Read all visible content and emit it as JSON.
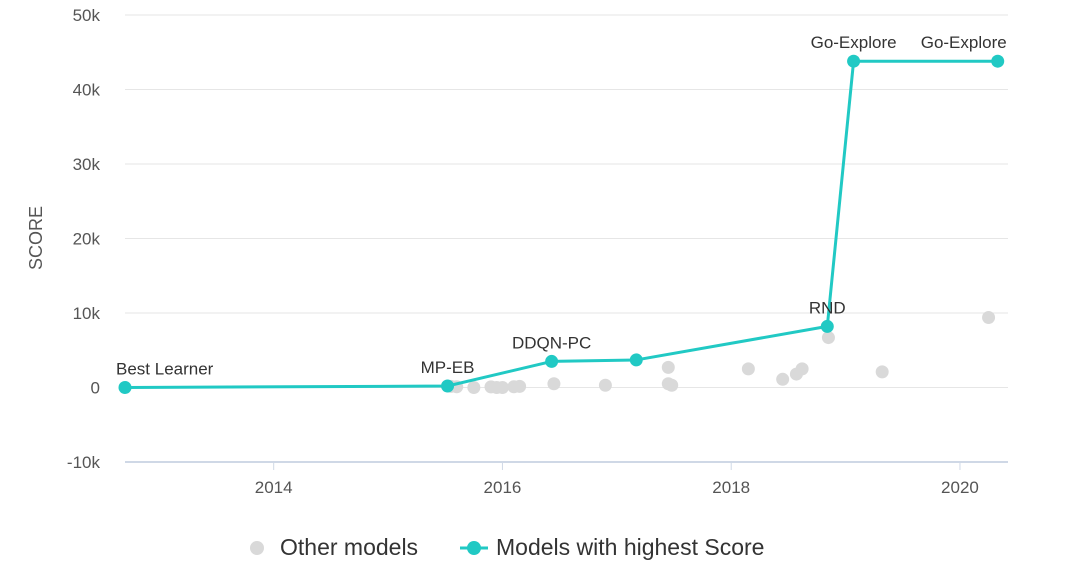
{
  "chart_data": {
    "type": "scatter",
    "xlabel": "",
    "ylabel": "SCORE",
    "xlim": [
      2012.7,
      2020.42
    ],
    "ylim": [
      -10000,
      50000
    ],
    "x_ticks": [
      2014,
      2016,
      2018,
      2020
    ],
    "x_tick_labels": [
      "2014",
      "2016",
      "2018",
      "2020"
    ],
    "y_ticks": [
      -10000,
      0,
      10000,
      20000,
      30000,
      40000,
      50000
    ],
    "y_tick_labels": [
      "-10k",
      "0",
      "10k",
      "20k",
      "30k",
      "40k",
      "50k"
    ],
    "grid": true,
    "legend_position": "bottom",
    "colors": {
      "best": "#21c9c4",
      "other": "#d9d9d9"
    },
    "series": [
      {
        "name": "Other models",
        "kind": "scatter",
        "points": [
          {
            "x": 2015.55,
            "y": 150
          },
          {
            "x": 2015.6,
            "y": 100
          },
          {
            "x": 2015.75,
            "y": 0
          },
          {
            "x": 2015.9,
            "y": 80
          },
          {
            "x": 2015.95,
            "y": 0
          },
          {
            "x": 2016.0,
            "y": 0
          },
          {
            "x": 2016.1,
            "y": 100
          },
          {
            "x": 2016.15,
            "y": 150
          },
          {
            "x": 2016.45,
            "y": 500
          },
          {
            "x": 2016.9,
            "y": 300
          },
          {
            "x": 2017.45,
            "y": 2700
          },
          {
            "x": 2017.45,
            "y": 500
          },
          {
            "x": 2017.48,
            "y": 300
          },
          {
            "x": 2018.15,
            "y": 2500
          },
          {
            "x": 2018.45,
            "y": 1100
          },
          {
            "x": 2018.57,
            "y": 1800
          },
          {
            "x": 2018.62,
            "y": 2500
          },
          {
            "x": 2018.85,
            "y": 6700
          },
          {
            "x": 2019.32,
            "y": 2100
          },
          {
            "x": 2020.25,
            "y": 9400
          }
        ]
      },
      {
        "name": "Models with highest Score",
        "kind": "line",
        "points": [
          {
            "x": 2012.7,
            "y": 0,
            "label": "Best Learner"
          },
          {
            "x": 2015.52,
            "y": 200,
            "label": "MP-EB"
          },
          {
            "x": 2016.43,
            "y": 3500,
            "label": "DDQN-PC"
          },
          {
            "x": 2017.17,
            "y": 3700,
            "label": ""
          },
          {
            "x": 2018.84,
            "y": 8200,
            "label": "RND"
          },
          {
            "x": 2019.07,
            "y": 43800,
            "label": "Go-Explore"
          },
          {
            "x": 2020.33,
            "y": 43800,
            "label": "Go-Explore"
          }
        ]
      }
    ]
  }
}
